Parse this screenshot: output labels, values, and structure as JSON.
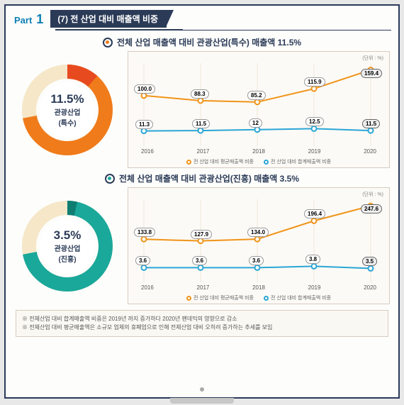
{
  "header": {
    "part_label": "Part",
    "part_num": "1",
    "banner_title": "(7) 전 산업 대비 매출액 비중"
  },
  "sections": [
    {
      "title": "전체 산업 매출액 대비 관광산업(특수) 매출액 11.5%",
      "donut": {
        "value_label": "11.5%",
        "name_label": "관광산업",
        "name_sub": "(특수)",
        "percent": 11.5,
        "fg_color": "#f07b1a",
        "accent_color": "#e84a1f",
        "bg_ring_color": "#f5e7c8"
      },
      "chart": {
        "unit": "(단위 : %)",
        "series_top": {
          "color": "#f0941a",
          "values": [
            100.0,
            88.3,
            85.2,
            115.9,
            159.4
          ],
          "labels": [
            "100.0",
            "88.3",
            "85.2",
            "115.9",
            "159.4"
          ]
        },
        "series_bottom": {
          "color": "#2aa6d6",
          "values": [
            11.3,
            11.5,
            12,
            12.5,
            11.5
          ],
          "labels": [
            "11.3",
            "11.5",
            "12",
            "12.5",
            "11.5"
          ]
        },
        "x_categories": [
          "2016",
          "2017",
          "2018",
          "2019",
          "2020"
        ],
        "legend": [
          "전 산업 대비 평균매출액 비중",
          "전 산업 대비 합계매출액 비중"
        ],
        "ylim_top": [
          60,
          175
        ],
        "ylim_bot": [
          5,
          20
        ]
      }
    },
    {
      "title": "전체 산업 매출액 대비 관광산업(진흥) 매출액 3.5%",
      "donut": {
        "value_label": "3.5%",
        "name_label": "관광산업",
        "name_sub": "(진흥)",
        "percent": 3.5,
        "fg_color": "#1aa89a",
        "accent_color": "#0f7d72",
        "bg_ring_color": "#f5e7c8"
      },
      "chart": {
        "unit": "(단위 : %)",
        "series_top": {
          "color": "#f0941a",
          "values": [
            133.8,
            127.9,
            134.0,
            196.4,
            247.6
          ],
          "labels": [
            "133.8",
            "127.9",
            "134.0",
            "196.4",
            "247.6"
          ]
        },
        "series_bottom": {
          "color": "#2aa6d6",
          "values": [
            3.6,
            3.6,
            3.6,
            3.8,
            3.5
          ],
          "labels": [
            "3.6",
            "3.6",
            "3.6",
            "3.8",
            "3.5"
          ]
        },
        "x_categories": [
          "2016",
          "2017",
          "2018",
          "2019",
          "2020"
        ],
        "legend": [
          "전 산업 대비 평균매출액 비중",
          "전 산업 대비 합계매출액 비중"
        ],
        "ylim_top": [
          100,
          270
        ],
        "ylim_bot": [
          2,
          6
        ]
      }
    }
  ],
  "footnotes": [
    "※ 전체산업 대비 합계매출액 비중은 2019년 까지 증가하다 2020년 팬데믹의 영향으로 감소",
    "※ 전체산업 대비 평균매출액은 소규모 업체의 휴폐업으로 인해 전체산업 대비 오히려 증가하는 추세를 보임"
  ]
}
